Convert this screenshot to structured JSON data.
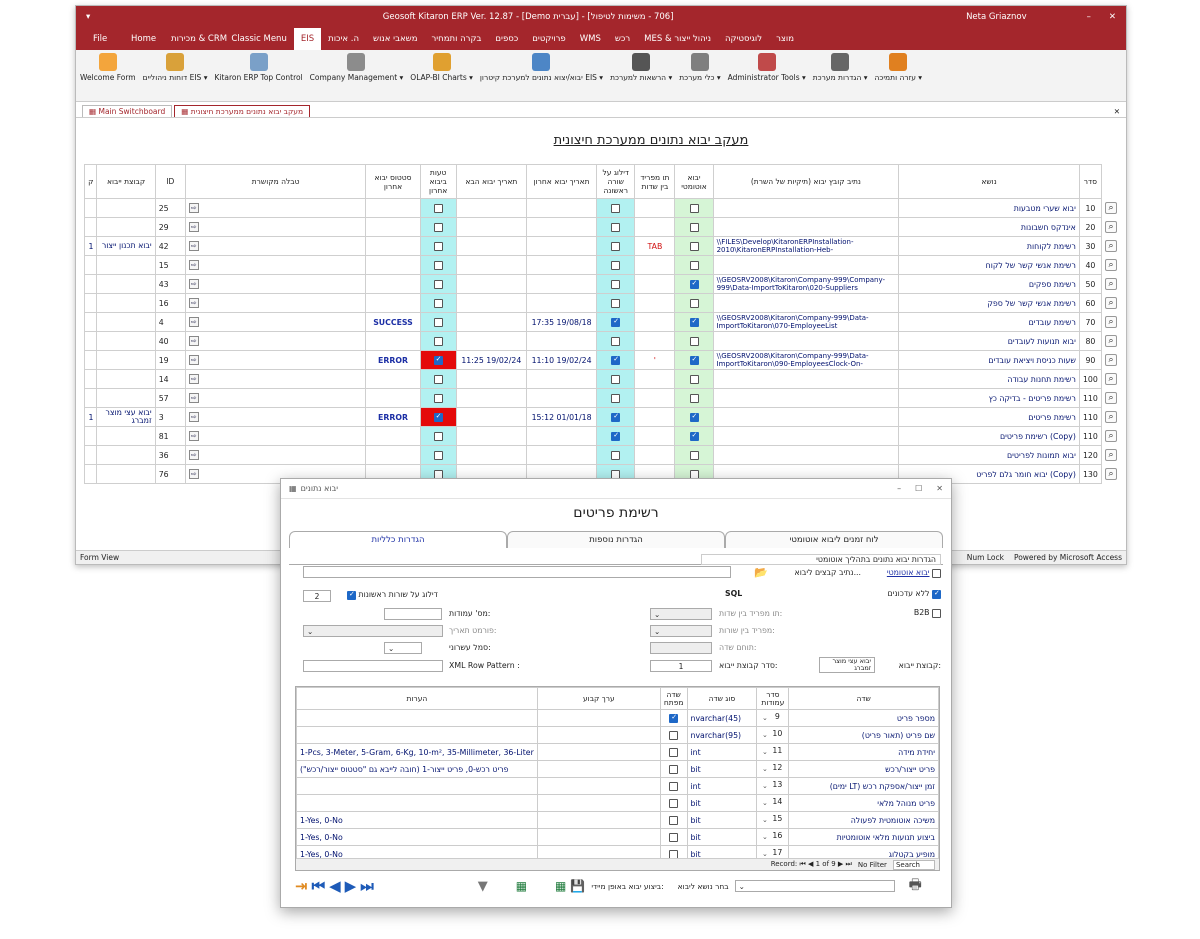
{
  "app": {
    "title": "Geosoft Kitaron ERP Ver. 12.87 - [Demo עברית] - [706 - משימות לטיפול]",
    "user": "Neta Griaznov",
    "menu_left": [
      "File",
      "Home",
      "CRM & מכירות"
    ],
    "menu_right": [
      "מוצר",
      "לוגיסטיקה",
      "ניהול ייצור & MES",
      "רכש",
      "WMS",
      "פרויקטים",
      "כספים",
      "בקרה ותמחיר",
      "משאבי אנוש",
      "ה. איכות",
      "EIS",
      "Classic Menu"
    ],
    "active_menu": "EIS",
    "ribbon": [
      {
        "label": "Welcome Form",
        "icon": "users-icon",
        "color": "#f3a53c"
      },
      {
        "label": "דוחות ניהוליים EIS ▾",
        "icon": "report-icon",
        "color": "#d9a13a"
      },
      {
        "label": "Kitaron ERP Top Control",
        "icon": "control-icon",
        "color": "#7aa0c8"
      },
      {
        "label": "Company Management ▾",
        "icon": "company-icon",
        "color": "#8c8c8c"
      },
      {
        "label": "OLAP-BI Charts ▾",
        "icon": "cube-icon",
        "color": "#e0a030"
      },
      {
        "label": "יבוא/יצוא נתונים למערכת קיטרון EIS ▾",
        "icon": "import-icon",
        "color": "#4d86c6"
      },
      {
        "label": "הרשאות למערכת ▾",
        "icon": "lock-icon",
        "color": "#555"
      },
      {
        "label": "כלי מערכת ▾",
        "icon": "tools-icon",
        "color": "#7f7f7f"
      },
      {
        "label": "Administrator Tools ▾",
        "icon": "admin-icon",
        "color": "#c04a4a"
      },
      {
        "label": "הגדרות מערכת ▾",
        "icon": "gear-icon",
        "color": "#666"
      },
      {
        "label": "עזרה ותמיכה ▾",
        "icon": "help-book-icon",
        "color": "#e08020"
      }
    ],
    "doc_tabs": [
      "Main Switchboard",
      "מעקב יבוא נתונים ממערכת חיצונית"
    ],
    "status_left": "Form View",
    "status_right": [
      "Num Lock",
      "Powered by Microsoft Access"
    ]
  },
  "main": {
    "heading": "מעקב יבוא נתונים ממערכת חיצונית",
    "columns": [
      "סדר",
      "נושא",
      "נתיב קובץ יבוא (תיקיות של השרת)",
      "יבוא אוטומטי",
      "תו מפריד בין שדות",
      "דילוג על שורה ראשונה",
      "תאריך יבוא אחרון",
      "תאריך יבוא הבא",
      "טעות ביבוא אחרון",
      "סטטוס יבוא אחרון",
      "טבלה מקושרת",
      "ID",
      "קבוצת ייבוא",
      "ק"
    ],
    "rows": [
      {
        "order": "10",
        "subject": "יבוא שערי מטבעות",
        "path": "",
        "auto": false,
        "sep": "",
        "skip": false,
        "last": "",
        "next": "",
        "err": false,
        "status": "",
        "id": "25",
        "group": "",
        "k": ""
      },
      {
        "order": "20",
        "subject": "אינדקס חשבונות",
        "path": "",
        "auto": false,
        "sep": "",
        "skip": false,
        "last": "",
        "next": "",
        "err": false,
        "status": "",
        "id": "29",
        "group": "",
        "k": ""
      },
      {
        "order": "30",
        "subject": "רשימת לקוחות",
        "path": "\\\\FILES\\Develop\\KitaronERPInstallation-2010\\KitaronERPInstallation-Heb-",
        "auto": false,
        "sep": "TAB",
        "skip": false,
        "last": "",
        "next": "",
        "err": false,
        "status": "",
        "id": "42",
        "group": "יבוא תכנון ייצור",
        "k": "1"
      },
      {
        "order": "40",
        "subject": "רשימת אנשי קשר של לקוח",
        "path": "",
        "auto": false,
        "sep": "",
        "skip": false,
        "last": "",
        "next": "",
        "err": false,
        "status": "",
        "id": "15",
        "group": "",
        "k": ""
      },
      {
        "order": "50",
        "subject": "רשימת ספקים",
        "path": "\\\\GEOSRV2008\\Kitaron\\Company-999\\Company-999\\Data-ImportToKitaron\\020-Suppliers",
        "auto": true,
        "sep": "",
        "skip": false,
        "last": "",
        "next": "",
        "err": false,
        "status": "",
        "id": "43",
        "group": "",
        "k": ""
      },
      {
        "order": "60",
        "subject": "רשימת אנשי קשר של ספק",
        "path": "",
        "auto": false,
        "sep": "",
        "skip": false,
        "last": "",
        "next": "",
        "err": false,
        "status": "",
        "id": "16",
        "group": "",
        "k": ""
      },
      {
        "order": "70",
        "subject": "רשימת עובדים",
        "path": "\\\\GEOSRV2008\\Kitaron\\Company-999\\Data-ImportToKitaron\\070-EmployeeList",
        "auto": true,
        "sep": "",
        "skip": true,
        "last": "19/08/18 17:35",
        "next": "",
        "err": false,
        "status": "SUCCESS",
        "id": "4",
        "group": "",
        "k": ""
      },
      {
        "order": "80",
        "subject": "יבוא תנועות לעובדים",
        "path": "",
        "auto": false,
        "sep": "",
        "skip": false,
        "last": "",
        "next": "",
        "err": false,
        "status": "",
        "id": "40",
        "group": "",
        "k": ""
      },
      {
        "order": "90",
        "subject": "שעות כניסת ויציאת עובדים",
        "path": "\\\\GEOSRV2008\\Kitaron\\Company-999\\Data-ImportToKitaron\\090-EmployeesClock-On-",
        "auto": true,
        "sep": "'",
        "skip": true,
        "last": "19/02/24 11:10",
        "next": "19/02/24 11:25",
        "err": true,
        "status": "ERROR",
        "id": "19",
        "group": "",
        "k": ""
      },
      {
        "order": "100",
        "subject": "רשימת תחנות עבודה",
        "path": "",
        "auto": false,
        "sep": "",
        "skip": false,
        "last": "",
        "next": "",
        "err": false,
        "status": "",
        "id": "14",
        "group": "",
        "k": ""
      },
      {
        "order": "110",
        "subject": "רשימת פריטים - בדיקה כץ",
        "path": "",
        "auto": false,
        "sep": "",
        "skip": false,
        "last": "",
        "next": "",
        "err": false,
        "status": "",
        "id": "57",
        "group": "",
        "k": ""
      },
      {
        "order": "110",
        "subject": "רשימת פריטים",
        "path": "",
        "auto": true,
        "sep": "",
        "skip": true,
        "last": "01/01/18 15:12",
        "next": "",
        "err": true,
        "status": "ERROR",
        "id": "3",
        "group": "יבוא עצי מוצר זמברג",
        "k": "1"
      },
      {
        "order": "110",
        "subject": "(Copy) רשימת פריטים",
        "path": "",
        "auto": true,
        "sep": "",
        "skip": true,
        "last": "",
        "next": "",
        "err": false,
        "status": "",
        "id": "81",
        "group": "",
        "k": ""
      },
      {
        "order": "120",
        "subject": "יבוא תמונות לפריטים",
        "path": "",
        "auto": false,
        "sep": "",
        "skip": false,
        "last": "",
        "next": "",
        "err": false,
        "status": "",
        "id": "36",
        "group": "",
        "k": ""
      },
      {
        "order": "130",
        "subject": "(Copy) יבוא חומר גלם לפריט",
        "path": "",
        "auto": false,
        "sep": "",
        "skip": false,
        "last": "",
        "next": "",
        "err": false,
        "status": "",
        "id": "76",
        "group": "",
        "k": ""
      }
    ]
  },
  "dialog": {
    "window_title": "יבוא נתונים",
    "title": "רשימת פריטים",
    "tabs": [
      "לוח זמנים ליבוא אוטומטי",
      "הגדרות נוספות",
      "הגדרות כלליות"
    ],
    "active_tab": "הגדרות כלליות",
    "process_label": "הגדרות יבוא נתונים בתהליך אוטומטי",
    "auto_import_label": "יבוא אוטומטי",
    "path_label": "נתיב קבצים ליבוא...",
    "sql_label": "SQL",
    "no_updates_label": "ללא עדכונים",
    "b2b_label": "B2B",
    "skip_first_label": "דילוג על שורות ראשונות",
    "skip_first_value": "2",
    "columns_count_label": "מס' עמודות:",
    "date_format_label": "פורמט תאריך:",
    "decimal_label": "סמל עשרוני:",
    "xml_label": "XML Row Pattern :",
    "field_sep_label": "תו מפריד בין שדות:",
    "col_sep_label": "מפריד בין שורות:",
    "field_end_label": "תוחם שדה:",
    "group_order_label": "סדר קבוצת ייבוא:",
    "group_order_value": "1",
    "group_label": "קבוצת ייבוא:",
    "group_value": "יבוא עצי מוצר זמברג",
    "sub_columns": [
      "שדה",
      "סדר עמודות",
      "סוג שדה",
      "שדה מפתח",
      "ערך קבוע",
      "הערות"
    ],
    "sub_rows": [
      {
        "field": "מספר פריט",
        "order": "9",
        "type": "nvarchar(45)",
        "key": true,
        "notes": ""
      },
      {
        "field": "שם פריט (תאור פריט)",
        "order": "10",
        "type": "nvarchar(95)",
        "key": false,
        "notes": ""
      },
      {
        "field": "יחידת מידה",
        "order": "11",
        "type": "int",
        "key": false,
        "notes": "1-Pcs, 3-Meter, 5-Gram, 6-Kg, 10-m², 35-Millimeter, 36-Liter"
      },
      {
        "field": "פריט ייצור/רכש",
        "order": "12",
        "type": "bit",
        "key": false,
        "notes": "פריט רכש-0, פריט ייצור-1 (חובה לייבא גם \"סטטוס ייצור/רכש\")"
      },
      {
        "field": "זמן ייצור/אספקת רכש (LT ימים)",
        "order": "13",
        "type": "int",
        "key": false,
        "notes": ""
      },
      {
        "field": "פריט מנוהל מלאי",
        "order": "14",
        "type": "bit",
        "key": false,
        "notes": ""
      },
      {
        "field": "משיכה אוטומטית לפעולה",
        "order": "15",
        "type": "bit",
        "key": false,
        "notes": "1-Yes, 0-No"
      },
      {
        "field": "ביצוע תנועות מלאי אוטומטיות",
        "order": "16",
        "type": "bit",
        "key": false,
        "notes": "1-Yes, 0-No"
      },
      {
        "field": "מופיע בקטלוג",
        "order": "17",
        "type": "bit",
        "key": false,
        "notes": "1-Yes, 0-No"
      }
    ],
    "record_nav": "Record: ⏮ ◀ 1 of 9 ▶ ⏭",
    "no_filter": "No Filter",
    "search": "Search",
    "import_now_label": "ביצוע יבוא באופן מיידי:",
    "choose_subject_label": "בחר נושא ליבוא"
  }
}
